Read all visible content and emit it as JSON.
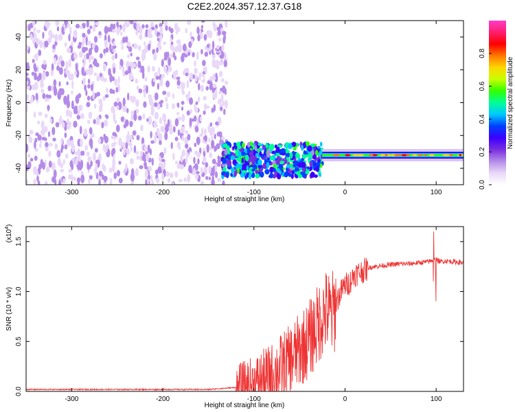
{
  "figure": {
    "title": "C2E2.2024.357.12.37.G18"
  },
  "chart_data": [
    {
      "type": "heatmap",
      "xlabel": "Height of straight line (km)",
      "ylabel": "Frequency (Hz)",
      "xlim": [
        -350,
        130
      ],
      "ylim": [
        -50,
        50
      ],
      "xticks": [
        -300,
        -200,
        -100,
        0,
        100
      ],
      "yticks": [
        -40,
        -20,
        0,
        20,
        40
      ],
      "colorbar": {
        "label": "Normalized spectral amplitude",
        "range": [
          0,
          1
        ],
        "ticks": [
          "0.0",
          "0.2",
          "0.4",
          "0.6",
          "0.8"
        ],
        "colors": [
          "#ffffff",
          "#e9d8f8",
          "#b48be8",
          "#7a2ee0",
          "#3b00ff",
          "#0040ff",
          "#00c8ff",
          "#00ff96",
          "#32ff00",
          "#c8ff00",
          "#ffd700",
          "#ff7800",
          "#ff0000",
          "#ff1e6e",
          "#ff3cc8"
        ]
      },
      "regions": [
        {
          "name": "noise",
          "x_range": [
            -350,
            -130
          ],
          "f_range": [
            -50,
            50
          ],
          "amplitude": 0.1
        },
        {
          "name": "signal-transition",
          "x_range": [
            -135,
            -25
          ],
          "f_range": [
            -45,
            -25
          ],
          "amplitude": 0.3
        },
        {
          "name": "signal-band",
          "x_range": [
            -25,
            130
          ],
          "f_center": -32,
          "amplitude": 0.75
        }
      ]
    },
    {
      "type": "line",
      "xlabel": "Height of straight line (km)",
      "ylabel": "SNR (10 * v/v)",
      "yscale_label": "(x10",
      "yscale_exp": "4",
      "yscale_close": ")",
      "xlim": [
        -350,
        130
      ],
      "ylim": [
        0,
        1.65
      ],
      "xticks": [
        -300,
        -200,
        -100,
        0,
        100
      ],
      "yticks": [
        "0.0",
        "0.5",
        "1.0",
        "1.5"
      ],
      "ytick_values": [
        0,
        0.5,
        1.0,
        1.5
      ],
      "series": [
        {
          "color": "#ee3333",
          "x": [
            -350,
            -300,
            -250,
            -200,
            -150,
            -120,
            -110,
            -100,
            -90,
            -80,
            -70,
            -60,
            -50,
            -40,
            -30,
            -25,
            -20,
            -15,
            -10,
            -5,
            0,
            5,
            10,
            15,
            20,
            25,
            30,
            40,
            50,
            60,
            70,
            80,
            90,
            95,
            100,
            105,
            110,
            120,
            130
          ],
          "values": [
            0.02,
            0.02,
            0.02,
            0.02,
            0.02,
            0.04,
            0.07,
            0.1,
            0.15,
            0.2,
            0.28,
            0.35,
            0.45,
            0.55,
            0.7,
            0.8,
            0.85,
            0.8,
            0.9,
            1.0,
            1.08,
            1.1,
            1.18,
            1.2,
            1.22,
            1.24,
            1.25,
            1.26,
            1.27,
            1.28,
            1.28,
            1.29,
            1.3,
            1.31,
            1.32,
            1.3,
            1.31,
            1.3,
            1.29
          ]
        }
      ]
    }
  ]
}
